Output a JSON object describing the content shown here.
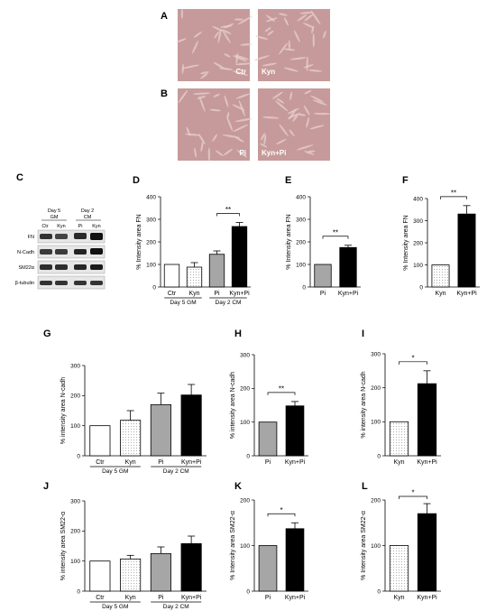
{
  "colors": {
    "ctr": "#ffffff",
    "kyn": "#f2f2f2",
    "pi": "#a6a6a6",
    "kynpi": "#000000",
    "micro_bg": "#c69a9a",
    "micro_cell": "#e8cfcf"
  },
  "panel_labels": {
    "A": "A",
    "B": "B",
    "C": "C",
    "D": "D",
    "E": "E",
    "F": "F",
    "G": "G",
    "H": "H",
    "I": "I",
    "J": "J",
    "K": "K",
    "L": "L"
  },
  "micrographs": [
    {
      "label": "Ctr"
    },
    {
      "label": "Kyn"
    },
    {
      "label": "Pi"
    },
    {
      "label": "Kyn+Pi"
    }
  ],
  "western_blot": {
    "header_left": [
      "Day 5",
      "GM"
    ],
    "header_right": [
      "Day 2",
      "CM"
    ],
    "lanes": [
      "Ctr",
      "Kyn",
      "Pi",
      "Kyn"
    ],
    "proteins": [
      "FN",
      "N-Cadh",
      "SM22α",
      "β-tubulin"
    ]
  },
  "chart_data": [
    {
      "id": "D",
      "type": "bar",
      "ylabel": "% Intensity area FN",
      "ylim": [
        0,
        400
      ],
      "yticks": [
        0,
        100,
        200,
        300,
        400
      ],
      "categories": [
        "Ctr",
        "Kyn",
        "Pi",
        "Kyn+Pi"
      ],
      "values": [
        100,
        88,
        145,
        268
      ],
      "errors": [
        0,
        20,
        15,
        18
      ],
      "fills": [
        "ctr",
        "kyn",
        "pi",
        "kynpi"
      ],
      "significance": [
        {
          "from": 2,
          "to": 3,
          "label": "**"
        }
      ],
      "groups": [
        {
          "label": "Day 5 GM",
          "from": 0,
          "to": 1
        },
        {
          "label": "Day 2 CM",
          "from": 2,
          "to": 3
        }
      ]
    },
    {
      "id": "E",
      "type": "bar",
      "ylabel": "% Intensity area FN",
      "ylim": [
        0,
        400
      ],
      "yticks": [
        0,
        100,
        200,
        300,
        400
      ],
      "categories": [
        "Pi",
        "Kyn+Pi"
      ],
      "values": [
        100,
        175
      ],
      "errors": [
        0,
        10
      ],
      "fills": [
        "pi",
        "kynpi"
      ],
      "significance": [
        {
          "from": 0,
          "to": 1,
          "label": "**"
        }
      ],
      "groups": []
    },
    {
      "id": "F",
      "type": "bar",
      "ylabel": "% Intensity area FN",
      "ylim": [
        0,
        400
      ],
      "yticks": [
        0,
        100,
        200,
        300,
        400
      ],
      "categories": [
        "Kyn",
        "Kyn+Pi"
      ],
      "values": [
        100,
        330
      ],
      "errors": [
        0,
        38
      ],
      "fills": [
        "kyn",
        "kynpi"
      ],
      "significance": [
        {
          "from": 0,
          "to": 1,
          "label": "**"
        }
      ],
      "groups": []
    },
    {
      "id": "G",
      "type": "bar",
      "ylabel": "% intensity area N-cadh",
      "ylim": [
        0,
        300
      ],
      "yticks": [
        0,
        100,
        200,
        300
      ],
      "categories": [
        "Ctr",
        "Kyn",
        "Pi",
        "Kyn+Pi"
      ],
      "values": [
        100,
        118,
        170,
        202
      ],
      "errors": [
        0,
        32,
        38,
        35
      ],
      "fills": [
        "ctr",
        "kyn",
        "pi",
        "kynpi"
      ],
      "significance": [],
      "groups": [
        {
          "label": "Day 5 GM",
          "from": 0,
          "to": 1
        },
        {
          "label": "Day 2 CM",
          "from": 2,
          "to": 3
        }
      ]
    },
    {
      "id": "H",
      "type": "bar",
      "ylabel": "% intensity area N-cadh",
      "ylim": [
        0,
        300
      ],
      "yticks": [
        0,
        100,
        200,
        300
      ],
      "categories": [
        "Pi",
        "Kyn+Pi"
      ],
      "values": [
        100,
        148
      ],
      "errors": [
        0,
        13
      ],
      "fills": [
        "pi",
        "kynpi"
      ],
      "significance": [
        {
          "from": 0,
          "to": 1,
          "label": "**"
        }
      ],
      "groups": []
    },
    {
      "id": "I",
      "type": "bar",
      "ylabel": "% intensity area N-cadh",
      "ylim": [
        0,
        300
      ],
      "yticks": [
        0,
        100,
        200,
        300
      ],
      "categories": [
        "Kyn",
        "Kyn+Pi"
      ],
      "values": [
        100,
        212
      ],
      "errors": [
        0,
        38
      ],
      "fills": [
        "kyn",
        "kynpi"
      ],
      "significance": [
        {
          "from": 0,
          "to": 1,
          "label": "*"
        }
      ],
      "groups": []
    },
    {
      "id": "J",
      "type": "bar",
      "ylabel": "% intensity area SM22-α",
      "ylim": [
        0,
        300
      ],
      "yticks": [
        0,
        100,
        200,
        300
      ],
      "categories": [
        "Ctr",
        "Kyn",
        "Pi",
        "Kyn+Pi"
      ],
      "values": [
        100,
        107,
        125,
        158
      ],
      "errors": [
        0,
        12,
        22,
        25
      ],
      "fills": [
        "ctr",
        "kyn",
        "pi",
        "kynpi"
      ],
      "significance": [],
      "groups": [
        {
          "label": "Day 5 GM",
          "from": 0,
          "to": 1
        },
        {
          "label": "Day 2 CM",
          "from": 2,
          "to": 3
        }
      ]
    },
    {
      "id": "K",
      "type": "bar",
      "ylabel": "% Intensity area SM22-α",
      "ylim": [
        0,
        200
      ],
      "yticks": [
        0,
        100,
        200
      ],
      "categories": [
        "Pi",
        "Kyn+Pi"
      ],
      "values": [
        100,
        137
      ],
      "errors": [
        0,
        13
      ],
      "fills": [
        "pi",
        "kynpi"
      ],
      "significance": [
        {
          "from": 0,
          "to": 1,
          "label": "*"
        }
      ],
      "groups": []
    },
    {
      "id": "L",
      "type": "bar",
      "ylabel": "% Intensity area SM22-α",
      "ylim": [
        0,
        200
      ],
      "yticks": [
        0,
        100,
        200
      ],
      "categories": [
        "Kyn",
        "Kyn+Pi"
      ],
      "values": [
        100,
        170
      ],
      "errors": [
        0,
        22
      ],
      "fills": [
        "kyn",
        "kynpi"
      ],
      "significance": [
        {
          "from": 0,
          "to": 1,
          "label": "*"
        }
      ],
      "groups": []
    }
  ]
}
